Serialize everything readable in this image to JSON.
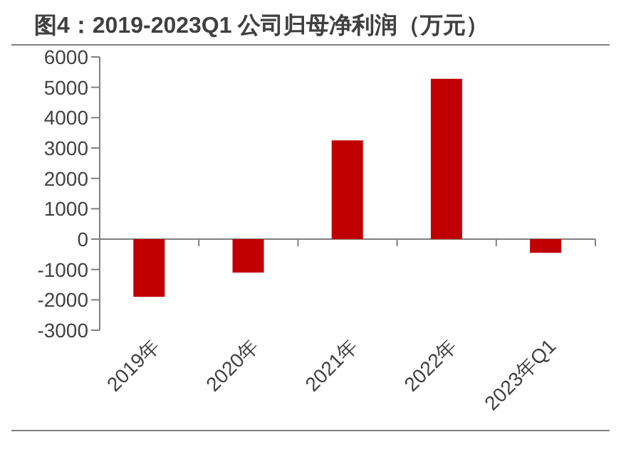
{
  "chart_data": {
    "type": "bar",
    "title": "图4：2019-2023Q1 公司归母净利润（万元）",
    "categories": [
      "2019年",
      "2020年",
      "2021年",
      "2022年",
      "2023年Q1"
    ],
    "values": [
      -1900,
      -1100,
      3250,
      5280,
      -450
    ],
    "color": "#c00000",
    "ylim": [
      -3000,
      6000
    ],
    "yticks": [
      -3000,
      -2000,
      -1000,
      0,
      1000,
      2000,
      3000,
      4000,
      5000,
      6000
    ]
  }
}
